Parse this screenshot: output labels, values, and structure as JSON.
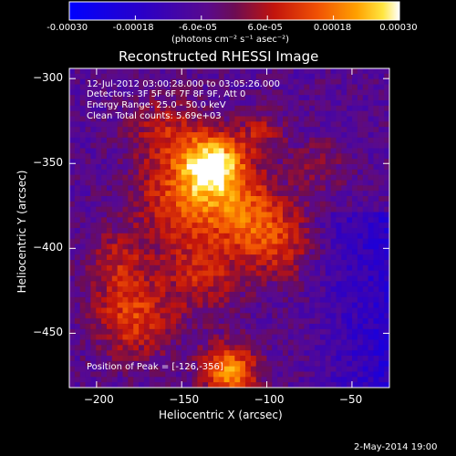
{
  "colorbar": {
    "tick_labels": [
      "-0.00030",
      "-0.00018",
      "-6.0e-05",
      "6.0e-05",
      "0.00018",
      "0.00030"
    ],
    "units_label": "(photons cm⁻² s⁻¹ asec⁻²)",
    "range": [
      -0.0003,
      0.0003
    ]
  },
  "title": "Reconstructed RHESSI Image",
  "annotations": {
    "time": "12-Jul-2012 03:00:28.000 to 03:05:26.000",
    "detectors": "Detectors: 3F 5F 6F 7F 8F 9F, Att 0",
    "energy": "Energy Range: 25.0 - 50.0 keV",
    "clean": "Clean     Total counts: 5.69e+03",
    "peak": "Position of Peak = [-126,-356]"
  },
  "x_axis": {
    "label": "Heliocentric X (arcsec)",
    "ticks": [
      -200,
      -150,
      -100,
      -50
    ],
    "range": [
      -216,
      -28
    ]
  },
  "y_axis": {
    "label": "Heliocentric Y (arcsec)",
    "ticks": [
      -300,
      -350,
      -400,
      -450
    ],
    "range": [
      -482,
      -294
    ]
  },
  "peak_position": [
    -126,
    -356
  ],
  "date_stamp": "2-May-2014 19:00",
  "colors": {
    "background": "#000000",
    "foreground": "#ffffff"
  }
}
